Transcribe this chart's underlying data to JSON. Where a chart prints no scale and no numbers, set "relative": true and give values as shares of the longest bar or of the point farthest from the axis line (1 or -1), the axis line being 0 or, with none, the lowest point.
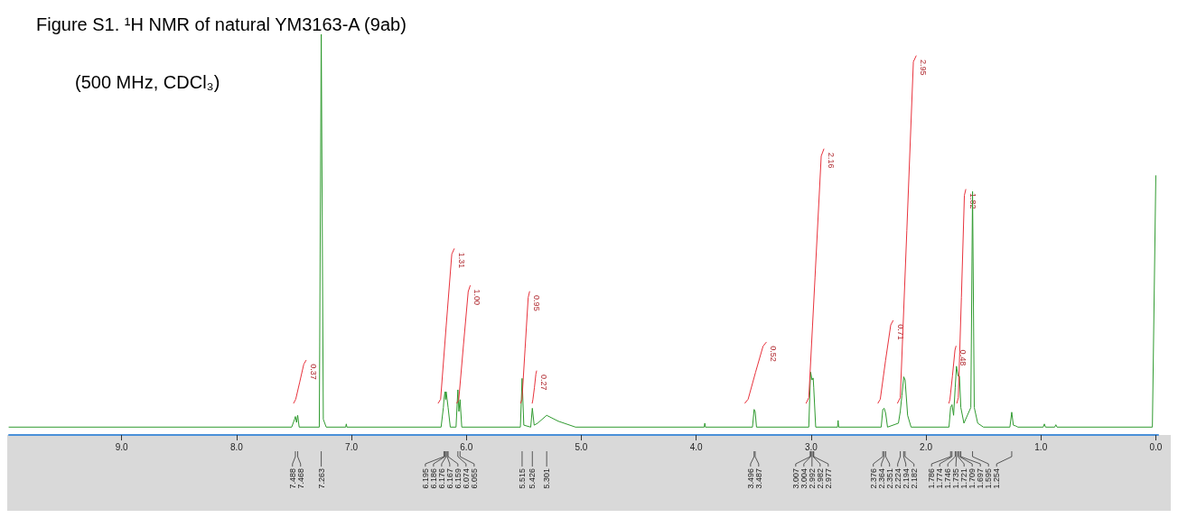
{
  "chart_data": {
    "type": "line",
    "title": "Figure S1. ¹H NMR of natural YM3163-A (9ab)",
    "subtitle": "(500 MHz, CDCl₃)",
    "relative": true,
    "grid": false,
    "marker": "none",
    "xlim": [
      9.98,
      -0.02
    ],
    "xticks": [
      {
        "value": 9,
        "label": "9.0"
      },
      {
        "value": 8,
        "label": "8.0"
      },
      {
        "value": 7,
        "label": "7.0"
      },
      {
        "value": 6,
        "label": "6.0"
      },
      {
        "value": 5,
        "label": "5.0"
      },
      {
        "value": 4,
        "label": "4.0"
      },
      {
        "value": 3,
        "label": "3.0"
      },
      {
        "value": 2,
        "label": "2.0"
      },
      {
        "value": 1,
        "label": "1.0"
      },
      {
        "value": 0,
        "label": "0.0"
      }
    ],
    "series": [
      {
        "color": "#2f9a2f",
        "x": [
          9.98,
          7.52,
          7.495,
          7.488,
          7.478,
          7.468,
          7.455,
          7.28,
          7.263,
          7.245,
          7.22,
          7.05,
          7.045,
          7.04,
          6.22,
          6.2,
          6.195,
          6.186,
          6.18,
          6.176,
          6.167,
          6.159,
          6.14,
          6.09,
          6.074,
          6.065,
          6.055,
          6.04,
          5.53,
          5.515,
          5.5,
          5.44,
          5.426,
          5.41,
          5.38,
          5.301,
          5.2,
          5.05,
          3.93,
          3.925,
          3.92,
          3.51,
          3.496,
          3.487,
          3.475,
          3.02,
          3.007,
          3.004,
          2.992,
          2.982,
          2.977,
          2.96,
          2.77,
          2.765,
          2.76,
          2.39,
          2.376,
          2.364,
          2.351,
          2.335,
          2.24,
          2.224,
          2.21,
          2.194,
          2.182,
          2.16,
          2.13,
          1.8,
          1.786,
          1.774,
          1.76,
          1.746,
          1.735,
          1.721,
          1.709,
          1.697,
          1.67,
          1.61,
          1.595,
          1.58,
          1.55,
          1.5,
          1.27,
          1.254,
          1.24,
          1.22,
          1.2,
          0.98,
          0.97,
          0.96,
          0.88,
          0.87,
          0.86,
          0.03,
          0.0
        ],
        "values": [
          0,
          0,
          0.02,
          0.027,
          0.012,
          0.03,
          0,
          0,
          1.0,
          0.02,
          0,
          0,
          0.008,
          0,
          0,
          0.05,
          0.07,
          0.09,
          0.07,
          0.09,
          0.07,
          0.05,
          0,
          0,
          0.095,
          0.04,
          0.07,
          0,
          0,
          0.124,
          0.005,
          0,
          0.048,
          0.005,
          0.01,
          0.03,
          0.015,
          0,
          0,
          0.01,
          0,
          0,
          0.045,
          0.04,
          0,
          0,
          0.12,
          0.14,
          0.12,
          0.125,
          0.1,
          0,
          0,
          0.017,
          0,
          0,
          0.045,
          0.048,
          0.035,
          0,
          0.01,
          0.04,
          0.08,
          0.128,
          0.12,
          0.03,
          0,
          0,
          0.05,
          0.057,
          0.03,
          0.1,
          0.155,
          0.13,
          0.13,
          0.05,
          0.01,
          0.05,
          0.6,
          0.05,
          0.01,
          0,
          0,
          0.038,
          0.005,
          0.003,
          0,
          0,
          0.008,
          0,
          0,
          0.006,
          0,
          0,
          0.64
        ]
      },
      {
        "color": "#e8323c",
        "x": [
          7.503,
          7.485,
          7.45,
          7.415,
          7.395
        ],
        "values": [
          0.061,
          0.071,
          0.115,
          0.16,
          0.17
        ]
      },
      {
        "color": "#e8323c",
        "x": [
          6.245,
          6.224,
          6.175,
          6.127,
          6.106
        ],
        "values": [
          0.061,
          0.071,
          0.26,
          0.44,
          0.454
        ]
      },
      {
        "color": "#e8323c",
        "x": [
          6.083,
          6.066,
          6.025,
          5.984,
          5.967
        ],
        "values": [
          0.061,
          0.071,
          0.21,
          0.345,
          0.36
        ]
      },
      {
        "color": "#e8323c",
        "x": [
          5.528,
          5.516,
          5.489,
          5.462,
          5.45
        ],
        "values": [
          0.061,
          0.071,
          0.2,
          0.33,
          0.345
        ]
      },
      {
        "color": "#e8323c",
        "x": [
          5.427,
          5.421,
          5.408,
          5.395,
          5.389
        ],
        "values": [
          0.061,
          0.07,
          0.1,
          0.135,
          0.143
        ]
      },
      {
        "color": "#e8323c",
        "x": [
          3.576,
          3.548,
          3.483,
          3.418,
          3.39
        ],
        "values": [
          0.061,
          0.071,
          0.14,
          0.206,
          0.216
        ]
      },
      {
        "color": "#e8323c",
        "x": [
          3.043,
          3.02,
          2.966,
          2.912,
          2.889
        ],
        "values": [
          0.061,
          0.075,
          0.38,
          0.69,
          0.708
        ]
      },
      {
        "color": "#e8323c",
        "x": [
          2.418,
          2.398,
          2.352,
          2.307,
          2.287
        ],
        "values": [
          0.061,
          0.071,
          0.17,
          0.26,
          0.271
        ]
      },
      {
        "color": "#e8323c",
        "x": [
          2.248,
          2.224,
          2.167,
          2.11,
          2.086
        ],
        "values": [
          0.061,
          0.075,
          0.5,
          0.93,
          0.945
        ]
      },
      {
        "color": "#e8323c",
        "x": [
          1.801,
          1.792,
          1.77,
          1.748,
          1.739
        ],
        "values": [
          0.061,
          0.07,
          0.13,
          0.196,
          0.206
        ]
      },
      {
        "color": "#e8323c",
        "x": [
          1.731,
          1.719,
          1.692,
          1.666,
          1.654
        ],
        "values": [
          0.061,
          0.075,
          0.33,
          0.59,
          0.605
        ]
      }
    ],
    "annotations": [
      {
        "text": "0.37",
        "x": 7.395,
        "y": 0.17
      },
      {
        "text": "1.31",
        "x": 6.106,
        "y": 0.454
      },
      {
        "text": "1.00",
        "x": 5.967,
        "y": 0.36
      },
      {
        "text": "0.95",
        "x": 5.45,
        "y": 0.345
      },
      {
        "text": "0.27",
        "x": 5.389,
        "y": 0.143
      },
      {
        "text": "0.52",
        "x": 3.39,
        "y": 0.216
      },
      {
        "text": "2.16",
        "x": 2.889,
        "y": 0.708
      },
      {
        "text": "0.71",
        "x": 2.287,
        "y": 0.271
      },
      {
        "text": "2.95",
        "x": 2.086,
        "y": 0.945
      },
      {
        "text": "0.48",
        "x": 1.739,
        "y": 0.206
      },
      {
        "text": "1.82",
        "x": 1.654,
        "y": 0.605
      },
      {
        "text": "7.488",
        "x": 7.488
      },
      {
        "text": "7.468",
        "x": 7.468
      },
      {
        "text": "7.263",
        "x": 7.263
      },
      {
        "text": "6.195",
        "x": 6.195
      },
      {
        "text": "6.186",
        "x": 6.186
      },
      {
        "text": "6.176",
        "x": 6.176
      },
      {
        "text": "6.167",
        "x": 6.167
      },
      {
        "text": "6.159",
        "x": 6.159
      },
      {
        "text": "6.074",
        "x": 6.074
      },
      {
        "text": "6.055",
        "x": 6.055
      },
      {
        "text": "5.515",
        "x": 5.515
      },
      {
        "text": "5.426",
        "x": 5.426
      },
      {
        "text": "5.301",
        "x": 5.301
      },
      {
        "text": "3.496",
        "x": 3.496
      },
      {
        "text": "3.487",
        "x": 3.487
      },
      {
        "text": "3.007",
        "x": 3.007
      },
      {
        "text": "3.004",
        "x": 3.004
      },
      {
        "text": "2.992",
        "x": 2.992
      },
      {
        "text": "2.982",
        "x": 2.982
      },
      {
        "text": "2.977",
        "x": 2.977
      },
      {
        "text": "2.376",
        "x": 2.376
      },
      {
        "text": "2.364",
        "x": 2.364
      },
      {
        "text": "2.351",
        "x": 2.351
      },
      {
        "text": "2.224",
        "x": 2.224
      },
      {
        "text": "2.194",
        "x": 2.194
      },
      {
        "text": "2.182",
        "x": 2.182
      },
      {
        "text": "1.786",
        "x": 1.786
      },
      {
        "text": "1.774",
        "x": 1.774
      },
      {
        "text": "1.746",
        "x": 1.746
      },
      {
        "text": "1.735",
        "x": 1.735
      },
      {
        "text": "1.721",
        "x": 1.721
      },
      {
        "text": "1.709",
        "x": 1.709
      },
      {
        "text": "1.697",
        "x": 1.697
      },
      {
        "text": "1.595",
        "x": 1.595
      },
      {
        "text": "1.254",
        "x": 1.254
      }
    ]
  }
}
